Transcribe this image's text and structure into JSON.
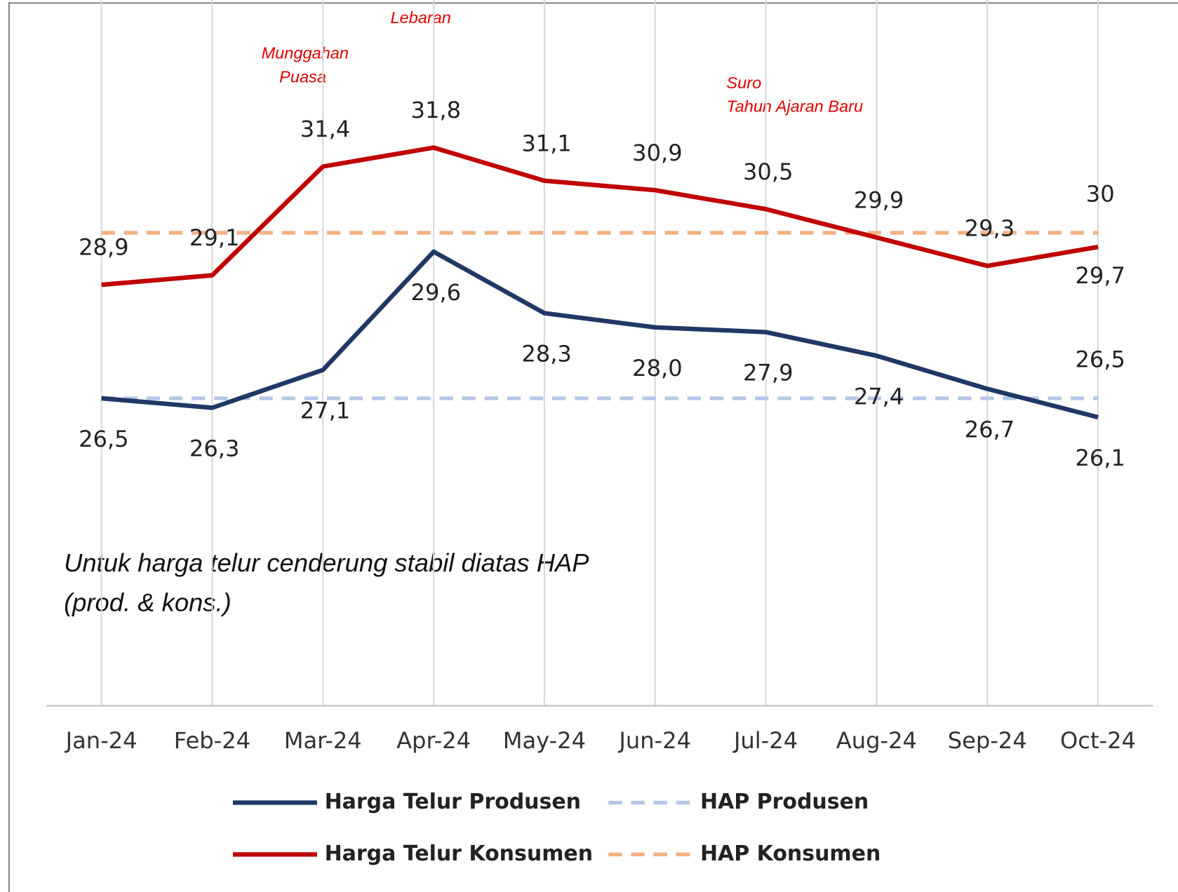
{
  "chart_data": {
    "type": "line",
    "categories": [
      "Jan-24",
      "Feb-24",
      "Mar-24",
      "Apr-24",
      "May-24",
      "Jun-24",
      "Jul-24",
      "Aug-24",
      "Sep-24",
      "Oct-24"
    ],
    "ylim": [
      20,
      34.5
    ],
    "grid": true,
    "series": [
      {
        "name": "Harga Telur Produsen",
        "color": "#203864",
        "dashed": false,
        "values": [
          26.5,
          26.3,
          27.1,
          29.6,
          28.3,
          28.0,
          27.9,
          27.4,
          26.7,
          26.1
        ],
        "value_labels": [
          "26,5",
          "26,3",
          "27,1",
          "29,6",
          "28,3",
          "28,0",
          "27,9",
          "27,4",
          "26,7",
          "26,1"
        ]
      },
      {
        "name": "HAP Produsen",
        "color": "#b4c7e7",
        "dashed": true,
        "values": [
          26.5,
          26.5,
          26.5,
          26.5,
          26.5,
          26.5,
          26.5,
          26.5,
          26.5,
          26.5
        ],
        "value_labels": [
          null,
          null,
          null,
          null,
          null,
          null,
          null,
          null,
          null,
          "26,5"
        ]
      },
      {
        "name": "Harga Telur Konsumen",
        "color": "#c00000",
        "dashed": false,
        "values": [
          28.9,
          29.1,
          31.4,
          31.8,
          31.1,
          30.9,
          30.5,
          29.9,
          29.3,
          29.7
        ],
        "value_labels": [
          "28,9",
          "29,1",
          "31,4",
          "31,8",
          "31,1",
          "30,9",
          "30,5",
          "29,9",
          "29,3",
          "29,7"
        ]
      },
      {
        "name": "HAP Konsumen",
        "color": "#f4b183",
        "dashed": true,
        "values": [
          30,
          30,
          30,
          30,
          30,
          30,
          30,
          30,
          30,
          30
        ],
        "value_labels": [
          null,
          null,
          null,
          null,
          null,
          null,
          null,
          null,
          null,
          "30"
        ]
      }
    ],
    "annotations": [
      {
        "text": "Lebaran"
      },
      {
        "text": "Munggahan"
      },
      {
        "text": "Puasa"
      },
      {
        "text": "Suro"
      },
      {
        "text": "Tahun Ajaran Baru"
      }
    ],
    "note": [
      "Untuk harga telur cenderung stabil diatas HAP",
      "(prod. & kons.)"
    ]
  }
}
